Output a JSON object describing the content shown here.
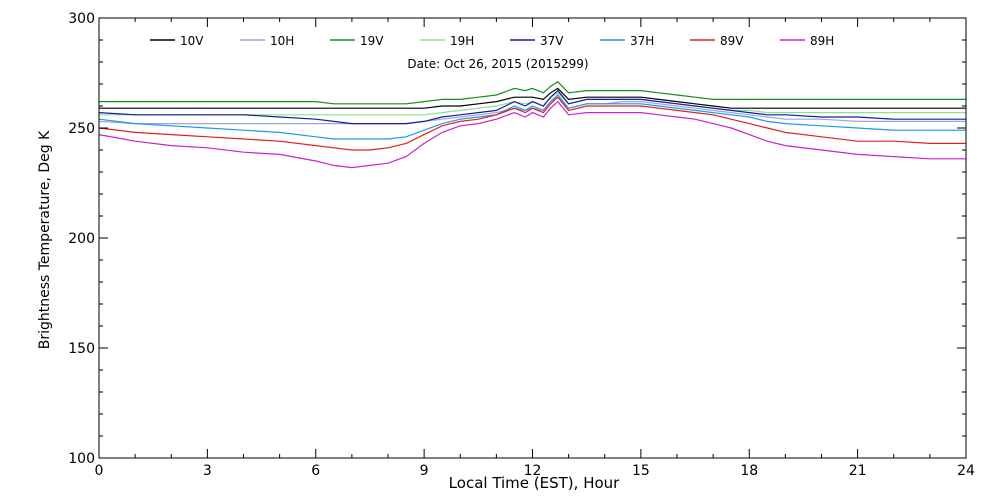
{
  "chart_data": {
    "type": "line",
    "title": "Date: Oct 26, 2015 (2015299)",
    "xlabel": "Local Time (EST), Hour",
    "ylabel": "Brightness Temperature, Deg K",
    "xlim": [
      0,
      24
    ],
    "ylim": [
      100,
      300
    ],
    "xticks": [
      "0",
      "3",
      "6",
      "9",
      "12",
      "15",
      "18",
      "21",
      "24"
    ],
    "yticks": [
      "100",
      "150",
      "200",
      "250",
      "300"
    ],
    "grid": false,
    "legend": "top",
    "x": [
      0,
      1,
      2,
      3,
      4,
      5,
      6,
      6.5,
      7,
      7.5,
      8,
      8.5,
      9,
      9.5,
      10,
      10.5,
      11,
      11.5,
      11.8,
      12,
      12.3,
      12.5,
      12.7,
      13,
      13.5,
      14,
      14.5,
      15,
      15.5,
      16,
      16.5,
      17,
      17.5,
      18,
      18.5,
      19,
      20,
      21,
      22,
      23,
      24
    ],
    "series": [
      {
        "name": "10V",
        "color": "#000000",
        "values": [
          259,
          259,
          259,
          259,
          259,
          259,
          259,
          259,
          259,
          259,
          259,
          259,
          259,
          260,
          260,
          261,
          262,
          264,
          264,
          264,
          263,
          266,
          268,
          263,
          264,
          264,
          264,
          264,
          263,
          262,
          261,
          260,
          259,
          259,
          259,
          259,
          259,
          259,
          259,
          259,
          259
        ]
      },
      {
        "name": "10H",
        "color": "#9aa4e6",
        "values": [
          253,
          252,
          252,
          252,
          252,
          252,
          252,
          252,
          252,
          252,
          252,
          252,
          253,
          254,
          255,
          256,
          257,
          259,
          258,
          259,
          258,
          262,
          264,
          259,
          261,
          261,
          262,
          262,
          261,
          260,
          259,
          258,
          257,
          256,
          255,
          254,
          254,
          253,
          253,
          253,
          253
        ]
      },
      {
        "name": "19V",
        "color": "#1a8c1a",
        "values": [
          262,
          262,
          262,
          262,
          262,
          262,
          262,
          261,
          261,
          261,
          261,
          261,
          262,
          263,
          263,
          264,
          265,
          268,
          267,
          268,
          266,
          269,
          271,
          266,
          267,
          267,
          267,
          267,
          266,
          265,
          264,
          263,
          263,
          263,
          263,
          263,
          263,
          263,
          263,
          263,
          263
        ]
      },
      {
        "name": "19H",
        "color": "#8fe08f",
        "values": [
          256,
          256,
          256,
          256,
          256,
          256,
          256,
          256,
          256,
          256,
          256,
          256,
          256,
          257,
          258,
          259,
          260,
          262,
          261,
          262,
          260,
          264,
          266,
          261,
          263,
          263,
          263,
          263,
          262,
          261,
          260,
          259,
          258,
          258,
          257,
          257,
          257,
          257,
          257,
          257,
          257
        ]
      },
      {
        "name": "37V",
        "color": "#1a1aa0",
        "values": [
          257,
          256,
          256,
          256,
          256,
          255,
          254,
          253,
          252,
          252,
          252,
          252,
          253,
          255,
          256,
          257,
          258,
          262,
          260,
          262,
          260,
          264,
          267,
          261,
          263,
          263,
          263,
          263,
          262,
          261,
          260,
          259,
          258,
          257,
          256,
          256,
          255,
          255,
          254,
          254,
          254
        ]
      },
      {
        "name": "37H",
        "color": "#2299dd",
        "values": [
          254,
          252,
          251,
          250,
          249,
          248,
          246,
          245,
          245,
          245,
          245,
          246,
          249,
          252,
          254,
          255,
          256,
          260,
          258,
          260,
          258,
          262,
          265,
          259,
          261,
          261,
          261,
          261,
          260,
          259,
          258,
          257,
          256,
          255,
          253,
          252,
          251,
          250,
          249,
          249,
          249
        ]
      },
      {
        "name": "89V",
        "color": "#e02020",
        "values": [
          250,
          248,
          247,
          246,
          245,
          244,
          242,
          241,
          240,
          240,
          241,
          243,
          247,
          251,
          253,
          254,
          256,
          259,
          257,
          259,
          257,
          261,
          264,
          258,
          260,
          260,
          260,
          260,
          259,
          258,
          257,
          256,
          254,
          252,
          250,
          248,
          246,
          244,
          244,
          243,
          243
        ]
      },
      {
        "name": "89H",
        "color": "#cc22cc",
        "values": [
          247,
          244,
          242,
          241,
          239,
          238,
          235,
          233,
          232,
          233,
          234,
          237,
          243,
          248,
          251,
          252,
          254,
          257,
          255,
          257,
          255,
          259,
          262,
          256,
          257,
          257,
          257,
          257,
          256,
          255,
          254,
          252,
          250,
          247,
          244,
          242,
          240,
          238,
          237,
          236,
          236
        ]
      }
    ]
  }
}
